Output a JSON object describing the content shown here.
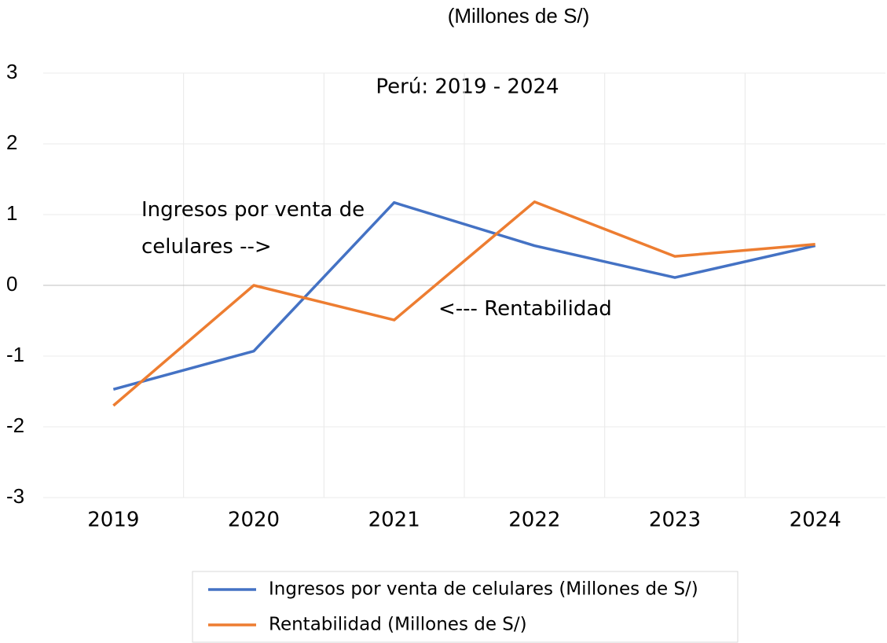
{
  "chart_data": {
    "type": "line",
    "title": "(Millones de S/)",
    "subtitle": "Perú: 2019 - 2024",
    "categories": [
      "2019",
      "2020",
      "2021",
      "2022",
      "2023",
      "2024"
    ],
    "series": [
      {
        "name": "Ingresos por venta de celulares (Millones de S/)",
        "color": "#4472c4",
        "values": [
          -1.47,
          -0.93,
          1.17,
          0.56,
          0.11,
          0.56
        ]
      },
      {
        "name": "Rentabilidad (Millones de S/)",
        "color": "#ed7d31",
        "values": [
          -1.7,
          0,
          -0.49,
          1.18,
          0.41,
          0.58
        ]
      }
    ],
    "annotations": [
      "Ingresos por venta de celulares -->",
      "<--- Rentabilidad"
    ],
    "ylim": [
      -3,
      3
    ],
    "yticks": [
      -3,
      -2,
      -1,
      0,
      1,
      2,
      3
    ],
    "grid": true,
    "legend": "bottom"
  }
}
